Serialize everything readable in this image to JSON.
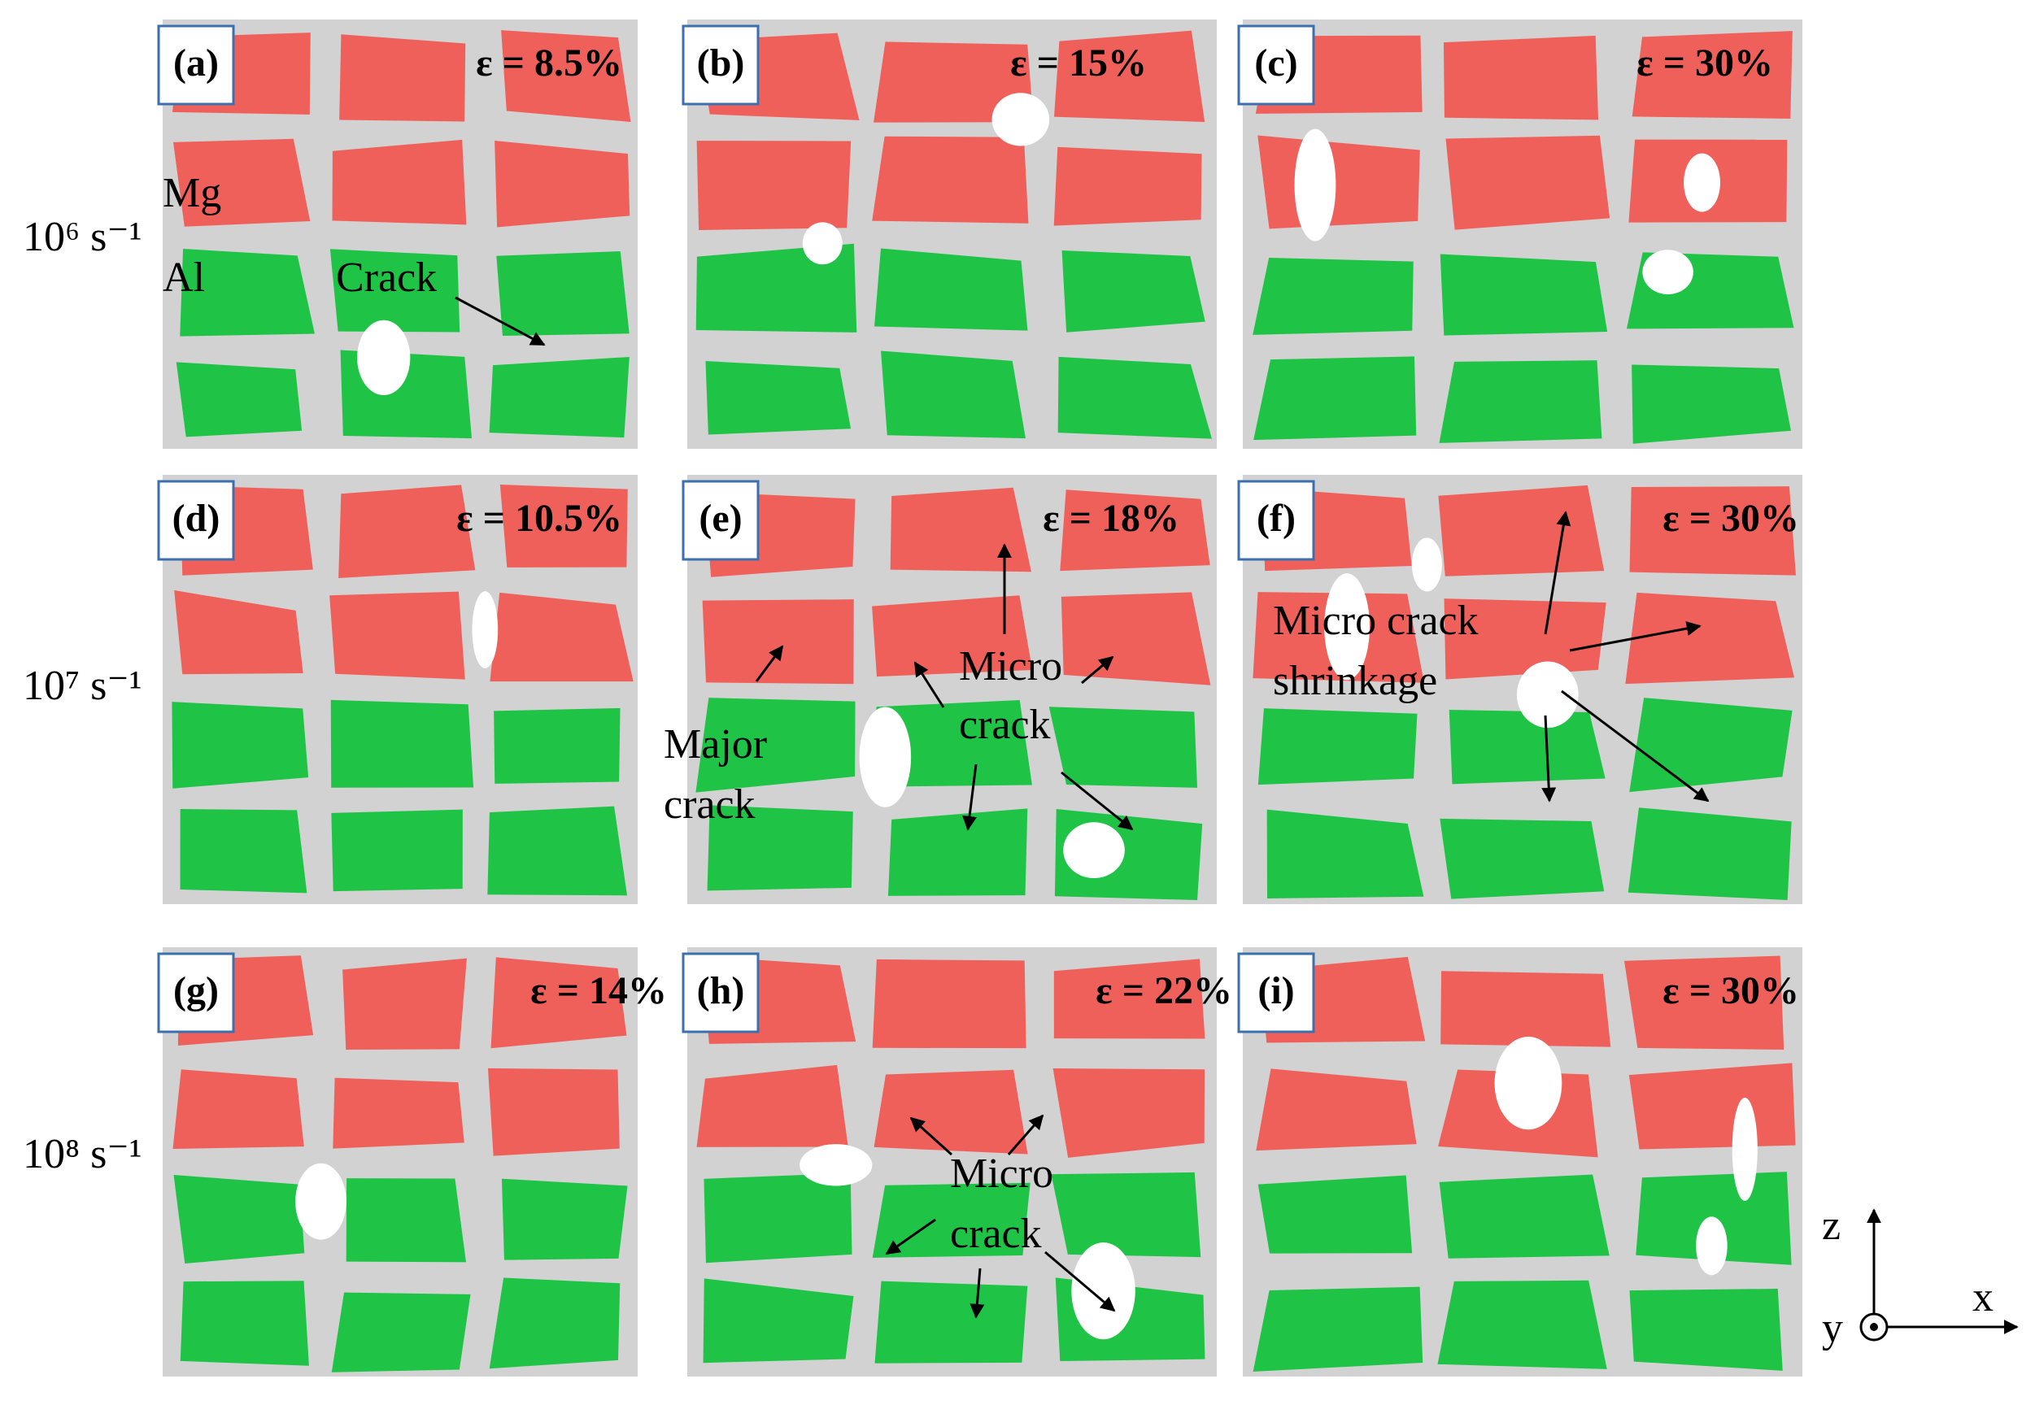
{
  "row_labels": [
    "10⁶ s⁻¹",
    "10⁷ s⁻¹",
    "10⁸ s⁻¹"
  ],
  "panels": [
    {
      "label": "(a)",
      "strain": "ε = 8.5%",
      "annotations": [
        [
          "Mg"
        ],
        [
          "Al"
        ],
        [
          "Crack"
        ]
      ]
    },
    {
      "label": "(b)",
      "strain": "ε = 15%",
      "annotations": []
    },
    {
      "label": "(c)",
      "strain": "ε = 30%",
      "annotations": []
    },
    {
      "label": "(d)",
      "strain": "ε = 10.5%",
      "annotations": []
    },
    {
      "label": "(e)",
      "strain": "ε = 18%",
      "annotations": [
        [
          "Major",
          "crack"
        ],
        [
          "Micro",
          "crack"
        ]
      ]
    },
    {
      "label": "(f)",
      "strain": "ε = 30%",
      "annotations": [
        [
          "Micro crack",
          "shrinkage"
        ]
      ]
    },
    {
      "label": "(g)",
      "strain": "ε = 14%",
      "annotations": []
    },
    {
      "label": "(h)",
      "strain": "ε = 22%",
      "annotations": [
        [
          "Micro",
          "crack"
        ]
      ]
    },
    {
      "label": "(i)",
      "strain": "ε = 30%",
      "annotations": []
    }
  ],
  "axes": {
    "z": "z",
    "x": "x",
    "y": "y"
  }
}
